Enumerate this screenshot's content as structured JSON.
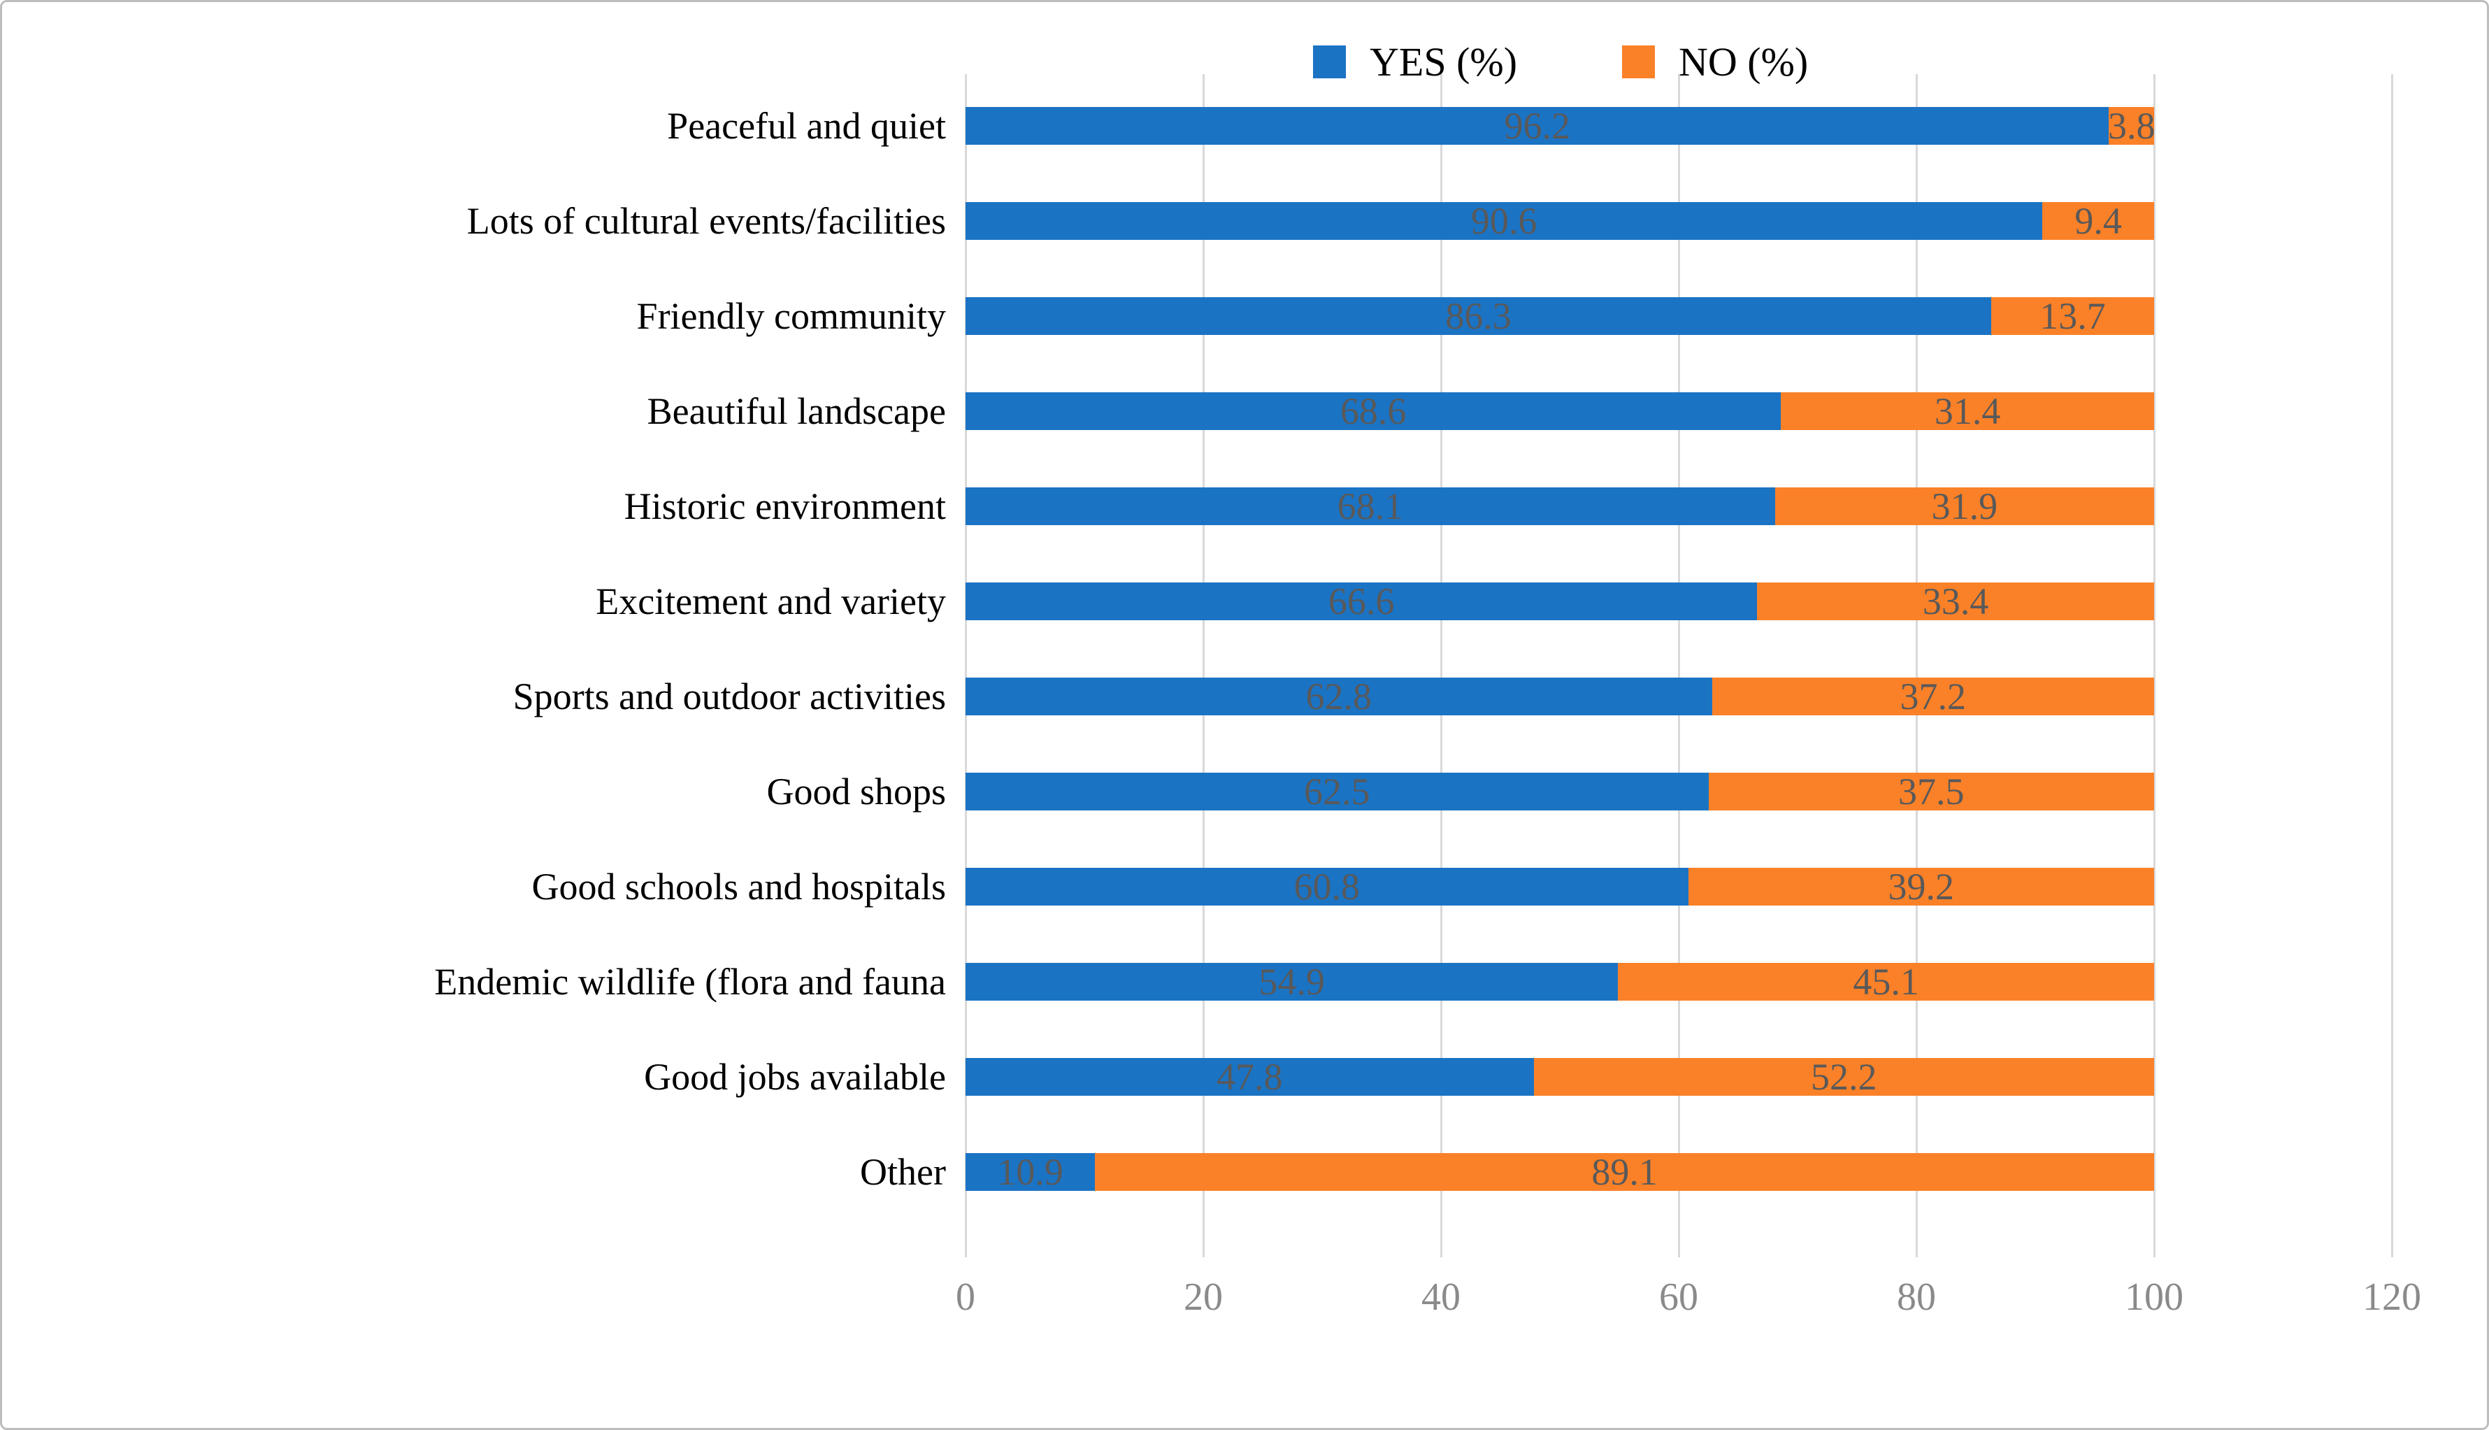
{
  "legend": [
    {
      "label": "YES (%)",
      "color": "#1b73c4"
    },
    {
      "label": "NO (%)",
      "color": "#fa8128"
    }
  ],
  "chart_data": {
    "type": "bar",
    "orientation": "horizontal",
    "stacked": true,
    "title": "",
    "xlabel": "",
    "ylabel": "",
    "xlim": [
      0,
      120
    ],
    "xticks": [
      0,
      20,
      40,
      60,
      80,
      100,
      120
    ],
    "grid": true,
    "legend_position": "top",
    "categories": [
      "Peaceful and quiet",
      "Lots of cultural events/facilities",
      "Friendly community",
      "Beautiful landscape",
      "Historic environment",
      "Excitement and variety",
      "Sports and outdoor activities",
      "Good shops",
      "Good schools and hospitals",
      "Endemic wildlife (flora and fauna",
      "Good jobs available",
      "Other"
    ],
    "series": [
      {
        "name": "YES (%)",
        "color": "#1b73c4",
        "values": [
          96.2,
          90.6,
          86.3,
          68.6,
          68.1,
          66.6,
          62.8,
          62.5,
          60.8,
          54.9,
          47.8,
          10.9
        ]
      },
      {
        "name": "NO (%)",
        "color": "#fa8128",
        "values": [
          3.8,
          9.4,
          13.7,
          31.4,
          31.9,
          33.4,
          37.2,
          37.5,
          39.2,
          45.1,
          52.2,
          89.1
        ]
      }
    ],
    "value_label_color": "#595959",
    "tick_label_color": "#8a8a8a",
    "gridline_color": "#d9d9d9"
  }
}
